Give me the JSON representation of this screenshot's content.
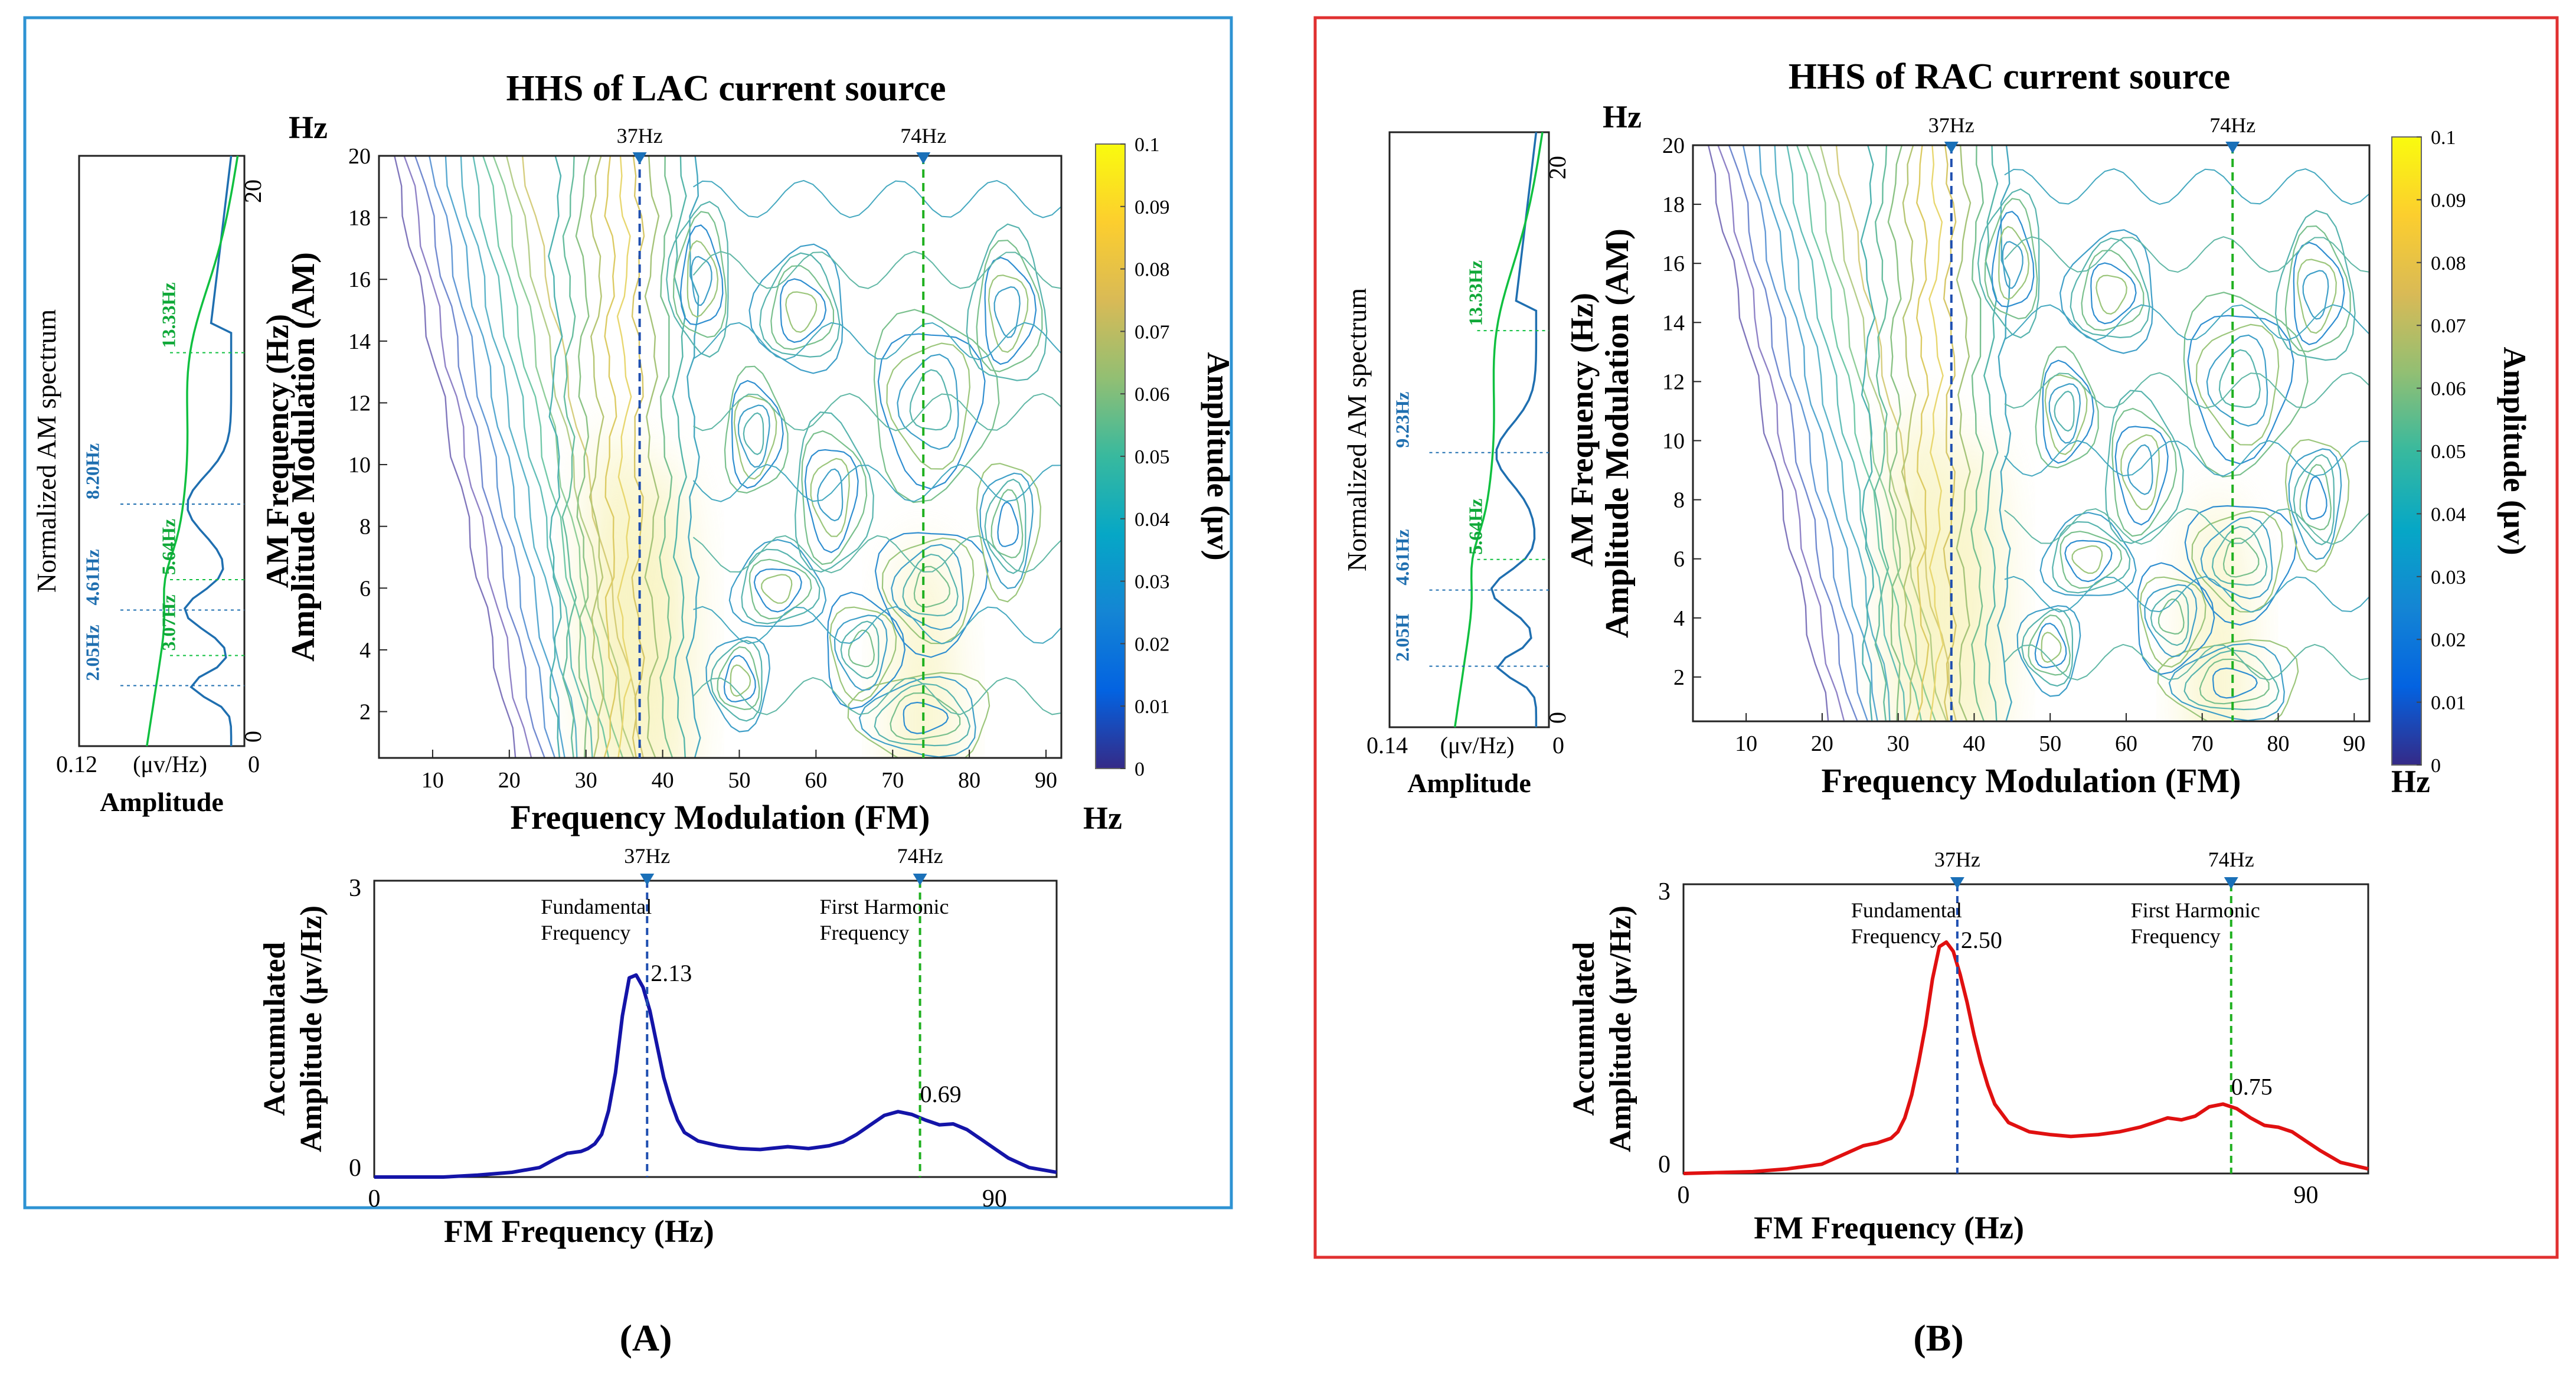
{
  "colors": {
    "panel_a_border": "#2e93d3",
    "panel_b_border": "#e03030",
    "blue_curve": "#1f6fb0",
    "green_curve": "#10c040",
    "blue_label": "#1f6fb0",
    "green_label": "#0fa838",
    "dashed_blue": "#1f4fb0",
    "dashed_green": "#20b020",
    "accum_a": "#1414a8",
    "accum_b": "#e01010",
    "marker": "#1a70b8"
  },
  "colormap": {
    "label": "Amplitude (μv)",
    "ticks": [
      "0.1",
      "0.09",
      "0.08",
      "0.07",
      "0.06",
      "0.05",
      "0.04",
      "0.03",
      "0.02",
      "0.01",
      "0"
    ]
  },
  "chart_data": [
    {
      "id": "A",
      "panel_label": "(A)",
      "type": "heatmap",
      "title": "HHS of LAC current source",
      "hhs": {
        "xlabel": "Frequency Modulation (FM)",
        "ylabel": "Amplitude Modulation (AM)",
        "x_unit": "Hz",
        "y_unit": "Hz",
        "xlim": [
          3,
          92
        ],
        "ylim": [
          0.5,
          20
        ],
        "x_ticks": [
          10,
          20,
          30,
          40,
          50,
          60,
          70,
          80,
          90
        ],
        "y_ticks": [
          2,
          4,
          6,
          8,
          10,
          12,
          14,
          16,
          18,
          20
        ],
        "markers": [
          {
            "label": "37Hz",
            "x": 37,
            "color": "blue"
          },
          {
            "label": "74Hz",
            "x": 74,
            "color": "green"
          }
        ],
        "peaks": [
          {
            "x": 34,
            "y": 5,
            "amplitude": 0.09
          },
          {
            "x": 40,
            "y": 4,
            "amplitude": 0.08
          },
          {
            "x": 74,
            "y": 1.5,
            "amplitude": 0.08
          }
        ]
      },
      "am_spectrum": {
        "title": "Normalized AM spectrum",
        "ylabel": "AM Frequency (Hz)",
        "amp_axis_label": "Amplitude",
        "amp_unit": "(μv/Hz)",
        "amp_max": "0.12",
        "amp_zero": "0",
        "y_top": "20",
        "y_bottom": "0",
        "blue_labels": [
          {
            "text": "2.05Hz",
            "am": 2.05
          },
          {
            "text": "4.61Hz",
            "am": 4.61
          },
          {
            "text": "8.20Hz",
            "am": 8.2
          }
        ],
        "green_labels": [
          {
            "text": "3.07Hz",
            "am": 3.07
          },
          {
            "text": "5.64Hz",
            "am": 5.64
          },
          {
            "text": "13.33Hz",
            "am": 13.33
          }
        ]
      },
      "accumulated": {
        "type": "line",
        "xlabel": "FM Frequency (Hz)",
        "ylabel_line1": "Accumulated",
        "ylabel_line2": "Amplitude (μv/Hz)",
        "x_ticks": [
          "0",
          "90"
        ],
        "y_ticks": [
          "3",
          "0"
        ],
        "xlim": [
          0,
          99
        ],
        "ylim": [
          0,
          3
        ],
        "fundamental_label_1": "Fundamental",
        "fundamental_label_2": "Frequency",
        "harmonic_label_1": "First Harmonic",
        "harmonic_label_2": "Frequency",
        "peak_fundamental": "2.13",
        "peak_harmonic": "0.69",
        "x": [
          0,
          10,
          15,
          20,
          24,
          26,
          28,
          30,
          31,
          32,
          33,
          34,
          35,
          36,
          37,
          38,
          39,
          40,
          41,
          42,
          43,
          44,
          45,
          47,
          50,
          53,
          56,
          60,
          63,
          66,
          68,
          70,
          72,
          74,
          76,
          78,
          80,
          82,
          84,
          86,
          88,
          90,
          92,
          95,
          99
        ],
        "y": [
          0.0,
          0.0,
          0.02,
          0.05,
          0.1,
          0.18,
          0.25,
          0.27,
          0.3,
          0.35,
          0.45,
          0.7,
          1.1,
          1.7,
          2.1,
          2.13,
          2.0,
          1.75,
          1.4,
          1.05,
          0.8,
          0.6,
          0.47,
          0.38,
          0.33,
          0.3,
          0.29,
          0.32,
          0.3,
          0.33,
          0.37,
          0.45,
          0.55,
          0.65,
          0.69,
          0.66,
          0.6,
          0.55,
          0.56,
          0.5,
          0.4,
          0.3,
          0.2,
          0.1,
          0.05
        ]
      },
      "fm_markers": [
        "37Hz",
        "74Hz"
      ]
    },
    {
      "id": "B",
      "panel_label": "(B)",
      "type": "heatmap",
      "title": "HHS of RAC current source",
      "hhs": {
        "xlabel": "Frequency Modulation (FM)",
        "ylabel": "Amplitude Modulation (AM)",
        "x_unit": "Hz",
        "y_unit": "Hz",
        "xlim": [
          3,
          92
        ],
        "ylim": [
          0.5,
          20
        ],
        "x_ticks": [
          10,
          20,
          30,
          40,
          50,
          60,
          70,
          80,
          90
        ],
        "y_ticks": [
          2,
          4,
          6,
          8,
          10,
          12,
          14,
          16,
          18,
          20
        ],
        "markers": [
          {
            "label": "37Hz",
            "x": 37,
            "color": "blue"
          },
          {
            "label": "74Hz",
            "x": 74,
            "color": "green"
          }
        ],
        "peaks": [
          {
            "x": 33,
            "y": 5,
            "amplitude": 0.09
          },
          {
            "x": 40,
            "y": 4,
            "amplitude": 0.08
          },
          {
            "x": 72,
            "y": 2,
            "amplitude": 0.08
          }
        ]
      },
      "am_spectrum": {
        "title": "Normalized AM spectrum",
        "ylabel": "AM Frequency (Hz)",
        "amp_axis_label": "Amplitude",
        "amp_unit": "(μv/Hz)",
        "amp_max": "0.14",
        "amp_zero": "0",
        "y_top": "20",
        "y_bottom": "0",
        "blue_labels": [
          {
            "text": "2.05H",
            "am": 2.05
          },
          {
            "text": "4.61Hz",
            "am": 4.61
          },
          {
            "text": "9.23Hz",
            "am": 9.23
          }
        ],
        "green_labels": [
          {
            "text": "5.64Hz",
            "am": 5.64
          },
          {
            "text": "13.33Hz",
            "am": 13.33
          }
        ]
      },
      "accumulated": {
        "type": "line",
        "xlabel": "FM Frequency (Hz)",
        "ylabel_line1": "Accumulated",
        "ylabel_line2": "Amplitude (μv/Hz)",
        "x_ticks": [
          "0",
          "90"
        ],
        "y_ticks": [
          "3",
          "0"
        ],
        "xlim": [
          0,
          99
        ],
        "ylim": [
          0,
          3
        ],
        "fundamental_label_1": "Fundamental",
        "fundamental_label_2": "Frequency",
        "harmonic_label_1": "First Harmonic",
        "harmonic_label_2": "Frequency",
        "peak_fundamental": "2.50",
        "peak_harmonic": "0.75",
        "x": [
          0,
          10,
          15,
          20,
          23,
          26,
          28,
          30,
          31,
          32,
          33,
          34,
          35,
          36,
          37,
          38,
          39,
          40,
          41,
          42,
          43,
          44,
          45,
          47,
          50,
          53,
          56,
          60,
          63,
          66,
          68,
          70,
          72,
          74,
          76,
          78,
          80,
          82,
          84,
          86,
          88,
          90,
          92,
          95,
          99
        ],
        "y": [
          0.0,
          0.02,
          0.05,
          0.1,
          0.2,
          0.3,
          0.33,
          0.38,
          0.45,
          0.6,
          0.85,
          1.2,
          1.6,
          2.1,
          2.45,
          2.5,
          2.4,
          2.15,
          1.85,
          1.5,
          1.2,
          0.95,
          0.75,
          0.55,
          0.45,
          0.42,
          0.4,
          0.42,
          0.45,
          0.5,
          0.55,
          0.6,
          0.58,
          0.62,
          0.72,
          0.75,
          0.7,
          0.6,
          0.52,
          0.5,
          0.45,
          0.35,
          0.25,
          0.12,
          0.05
        ]
      },
      "fm_markers": [
        "37Hz",
        "74Hz"
      ]
    }
  ]
}
